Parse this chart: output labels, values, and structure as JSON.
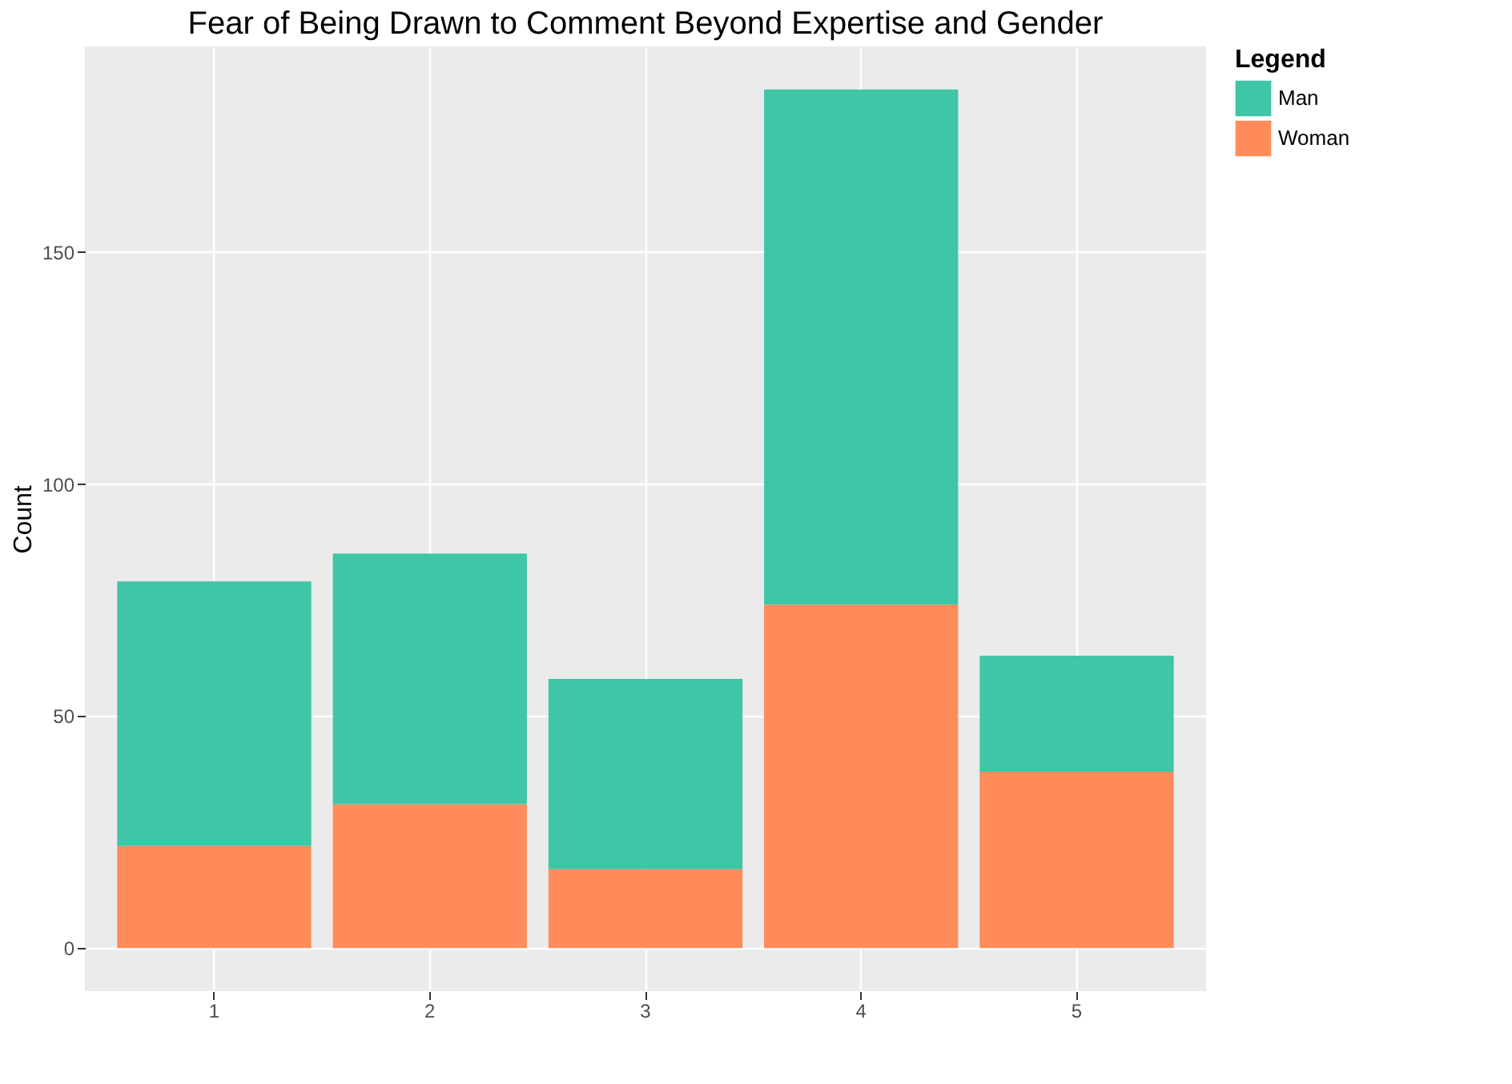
{
  "chart_data": {
    "type": "bar",
    "title": "Fear of Being Drawn to Comment Beyond Expertise and Gender",
    "ylabel": "Count",
    "legend_title": "Legend",
    "categories": [
      "1",
      "2",
      "3",
      "4",
      "5"
    ],
    "series": [
      {
        "name": "Woman",
        "color": "#ff8c5a",
        "values": [
          22,
          31,
          17,
          74,
          38
        ]
      },
      {
        "name": "Man",
        "color": "#3ec6a6",
        "values": [
          57,
          54,
          41,
          111,
          25
        ]
      }
    ],
    "stacked": true,
    "ylim": [
      -9.25,
      194.25
    ],
    "yticks": [
      0,
      50,
      100,
      150
    ],
    "grid": true,
    "legend": "right"
  }
}
